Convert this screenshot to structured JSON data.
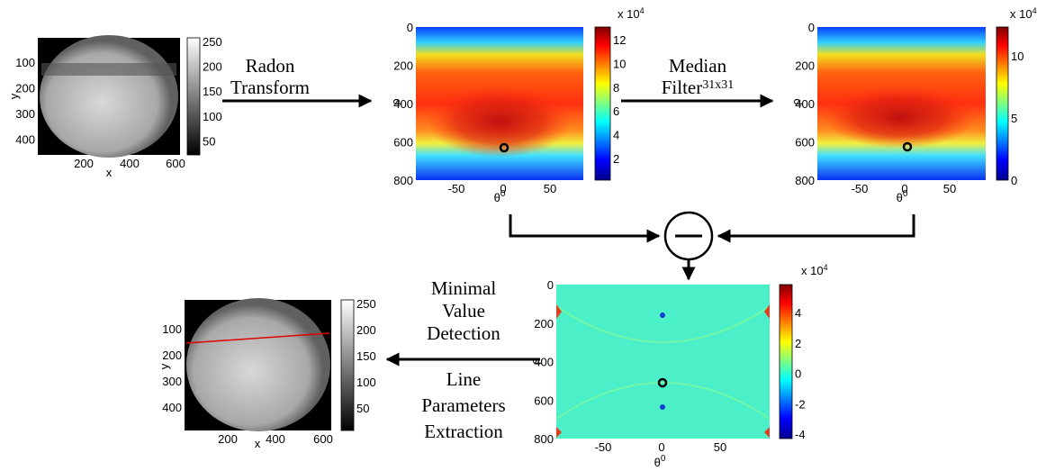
{
  "panels": [
    {
      "y_label": "y",
      "x_label": "x",
      "yticks": [
        100,
        200,
        300,
        400
      ],
      "xticks": [
        200,
        400,
        600
      ],
      "colorbar_ticks": [
        250,
        200,
        150,
        100,
        50
      ]
    },
    {
      "y_label": "ρ",
      "x_label": "θ",
      "x_label_sup": "0",
      "yticks": [
        0,
        200,
        400,
        600,
        800
      ],
      "xticks": [
        -50,
        0,
        50
      ],
      "colorbar_ticks": [
        12,
        10,
        8,
        6,
        4,
        2
      ],
      "colorbar_scale": "x 10",
      "colorbar_scale_sup": "4"
    },
    {
      "y_label": "ρ",
      "x_label": "θ",
      "x_label_sup": "0",
      "yticks": [
        0,
        200,
        400,
        600,
        800
      ],
      "xticks": [
        -50,
        0,
        50
      ],
      "colorbar_ticks": [
        10,
        5,
        0
      ],
      "colorbar_scale": "x 10",
      "colorbar_scale_sup": "4"
    },
    {
      "y_label": "ρ",
      "x_label": "θ",
      "x_label_sup": "0",
      "yticks": [
        0,
        200,
        400,
        600,
        800
      ],
      "xticks": [
        -50,
        0,
        50
      ],
      "colorbar_ticks": [
        4,
        2,
        0,
        -2,
        -4
      ],
      "colorbar_scale": "x 10",
      "colorbar_scale_sup": "4"
    },
    {
      "y_label": "y",
      "x_label": "x",
      "yticks": [
        100,
        200,
        300,
        400
      ],
      "xticks": [
        200,
        400,
        600
      ],
      "colorbar_ticks": [
        250,
        200,
        150,
        100,
        50
      ]
    }
  ],
  "steps": [
    {
      "lines": [
        "Radon",
        "Transform"
      ]
    },
    {
      "lines": [
        "Median",
        "Filter"
      ],
      "sup": "31x31"
    },
    {
      "lines": [
        "Minimal",
        "Value",
        "Detection"
      ]
    },
    {
      "lines": [
        "Line",
        "Parameters",
        "Extraction"
      ]
    }
  ]
}
